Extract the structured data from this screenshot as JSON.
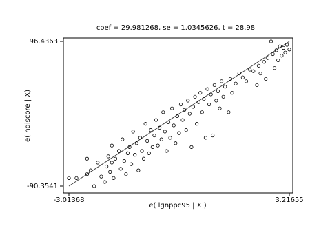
{
  "chart_data": {
    "type": "scatter",
    "title": "coef = 29.981268, se = 1.0345626, t = 28.98",
    "x_label": "e( lgnppc95 | X )",
    "y_label": "e( hdiscore | X)",
    "xlim": [
      -3.1694,
      3.3139
    ],
    "ylim": [
      -99.25,
      100.88
    ],
    "xticks": [
      -3.01368,
      3.21655
    ],
    "yticks": [
      -90.3541,
      96.4363
    ],
    "color": "#000000",
    "x": [
      -3.01368,
      -2.8,
      -2.5,
      -2.5,
      -2.4,
      -2.3,
      -2.2,
      -2.1,
      -2.0,
      -1.95,
      -1.9,
      -1.85,
      -1.8,
      -1.8,
      -1.75,
      -1.7,
      -1.6,
      -1.55,
      -1.5,
      -1.45,
      -1.4,
      -1.35,
      -1.3,
      -1.25,
      -1.2,
      -1.15,
      -1.1,
      -1.05,
      -1.0,
      -0.95,
      -0.9,
      -0.85,
      -0.8,
      -0.75,
      -0.7,
      -0.65,
      -0.6,
      -0.55,
      -0.5,
      -0.45,
      -0.4,
      -0.35,
      -0.3,
      -0.25,
      -0.2,
      -0.15,
      -0.1,
      -0.05,
      0,
      0.05,
      0.1,
      0.15,
      0.2,
      0.25,
      0.3,
      0.35,
      0.4,
      0.45,
      0.5,
      0.55,
      0.6,
      0.65,
      0.7,
      0.75,
      0.8,
      0.85,
      0.9,
      0.95,
      1.0,
      1.05,
      1.1,
      1.15,
      1.2,
      1.25,
      1.3,
      1.35,
      1.4,
      1.5,
      1.55,
      1.6,
      1.7,
      1.8,
      1.9,
      2.0,
      2.1,
      2.2,
      2.3,
      2.35,
      2.4,
      2.5,
      2.55,
      2.6,
      2.7,
      2.75,
      2.8,
      2.85,
      2.9,
      2.95,
      3.0,
      3.05,
      3.1,
      3.15,
      3.21655
    ],
    "y": [
      -80,
      -80,
      -75,
      -55,
      -70,
      -90.3541,
      -60,
      -78,
      -85,
      -65,
      -52,
      -72,
      -60,
      -38,
      -80,
      -55,
      -45,
      -68,
      -30,
      -58,
      -75,
      -48,
      -40,
      -62,
      -20,
      -50,
      -35,
      -70,
      -28,
      -45,
      -55,
      -10,
      -32,
      -48,
      -18,
      -40,
      -25,
      -5,
      -38,
      -15,
      -30,
      5,
      -20,
      -45,
      -8,
      -28,
      10,
      -12,
      -35,
      0,
      -22,
      15,
      -5,
      8,
      -18,
      20,
      3,
      -40,
      12,
      25,
      -10,
      18,
      30,
      5,
      22,
      -28,
      35,
      15,
      28,
      -25,
      40,
      20,
      32,
      10,
      45,
      25,
      38,
      5,
      48,
      30,
      42,
      55,
      50,
      45,
      60,
      58,
      40,
      65,
      55,
      70,
      48,
      75,
      96.4363,
      80,
      62,
      85,
      72,
      90,
      78,
      88,
      82,
      92,
      86
    ],
    "fit": {
      "x": [
        -3.01368,
        3.21655
      ],
      "y": [
        -90.3541,
        96.4363
      ]
    }
  }
}
